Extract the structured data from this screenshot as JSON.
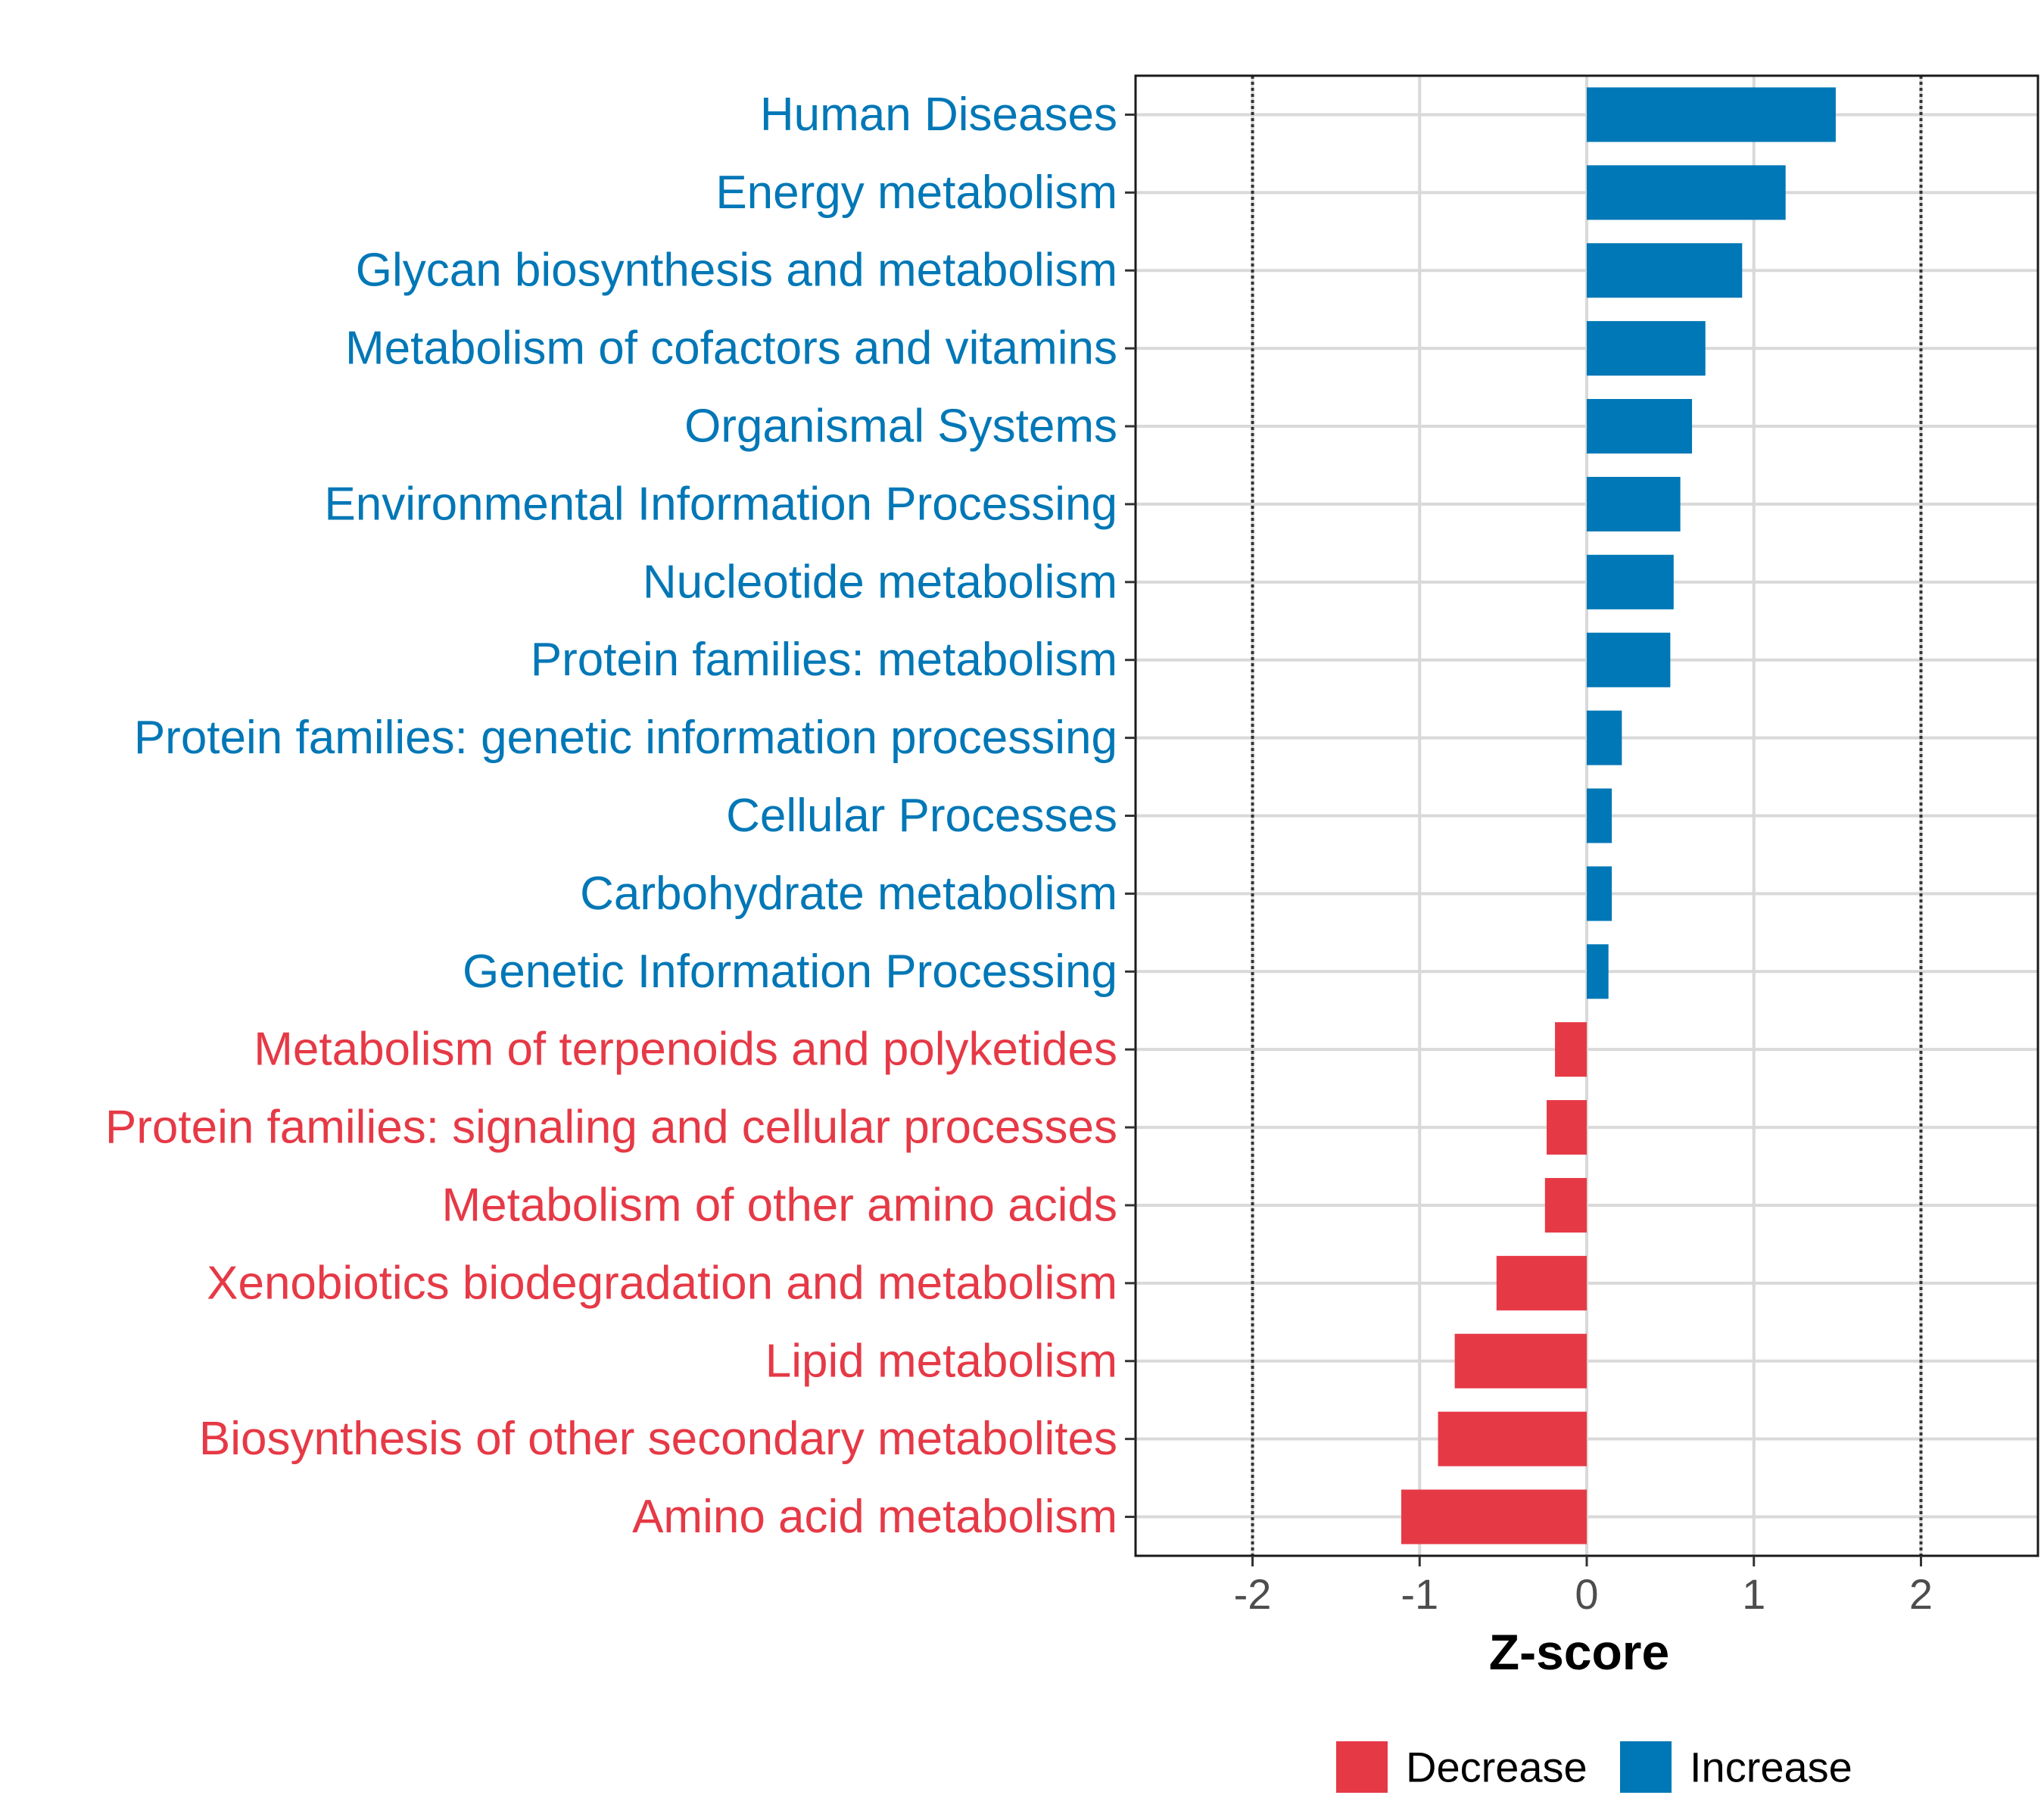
{
  "chart_data": {
    "type": "bar",
    "orientation": "horizontal",
    "title": "",
    "xlabel": "Z-score",
    "ylabel": "",
    "xlim": [
      -2.7,
      2.7
    ],
    "xticks": [
      -2,
      -1,
      0,
      1,
      2
    ],
    "tick_labels": [
      "-2",
      "-1",
      "0",
      "1",
      "2"
    ],
    "reference_lines": [
      -2,
      2
    ],
    "grid": true,
    "categories": [
      "Human Diseases",
      "Energy metabolism",
      "Glycan biosynthesis and metabolism",
      "Metabolism of cofactors and vitamins",
      "Organismal Systems",
      "Environmental Information Processing",
      "Nucleotide metabolism",
      "Protein families: metabolism",
      "Protein families: genetic information processing",
      "Cellular Processes",
      "Carbohydrate metabolism",
      "Genetic Information Processing",
      "Metabolism of terpenoids and polyketides",
      "Protein families: signaling and cellular processes",
      "Metabolism of other amino acids",
      "Xenobiotics biodegradation and metabolism",
      "Lipid metabolism",
      "Biosynthesis of other secondary metabolites",
      "Amino acid metabolism"
    ],
    "values": [
      1.49,
      1.19,
      0.93,
      0.71,
      0.63,
      0.56,
      0.52,
      0.5,
      0.21,
      0.15,
      0.15,
      0.13,
      -0.19,
      -0.24,
      -0.25,
      -0.54,
      -0.79,
      -0.89,
      -1.11
    ],
    "groups": [
      "Increase",
      "Increase",
      "Increase",
      "Increase",
      "Increase",
      "Increase",
      "Increase",
      "Increase",
      "Increase",
      "Increase",
      "Increase",
      "Increase",
      "Decrease",
      "Decrease",
      "Decrease",
      "Decrease",
      "Decrease",
      "Decrease",
      "Decrease"
    ],
    "legend": {
      "placement": "bottom",
      "entries": [
        {
          "name": "Decrease",
          "color": "#e63946"
        },
        {
          "name": "Increase",
          "color": "#0077b6"
        }
      ]
    }
  },
  "colors": {
    "increase": "#0077b6",
    "decrease": "#e63946"
  }
}
